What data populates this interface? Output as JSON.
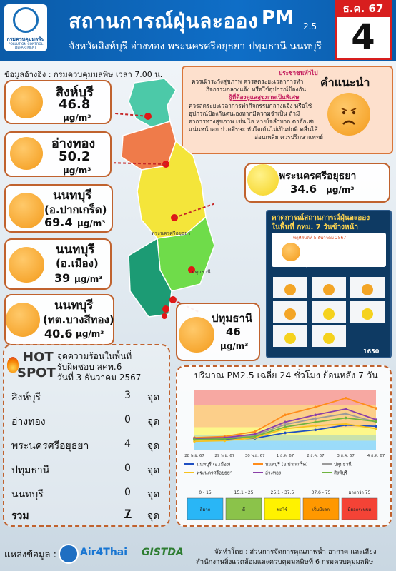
{
  "header": {
    "title": "สถานการณ์ฝุ่นละออง",
    "pm_main": "PM",
    "pm_sub": "2.5",
    "subtitle": "จังหวัดสิงห์บุรี อ่างทอง พระนครศรีอยุธยา ปทุมธานี นนทบุรี",
    "logo_text_th": "กรมควบคุมมลพิษ",
    "logo_text_en": "POLLUTION CONTROL DEPARTMENT",
    "date_month": "ธ.ค. 67",
    "date_day": "4"
  },
  "reference": "ข้อมูลอ้างอิง : กรมควบคุมมลพิษ เวลา 7.00 น.",
  "advice": {
    "title": "คำแนะนำ",
    "general_head": "ประชาชนทั่วไป",
    "general_text": [
      "ควรเฝ้าระวังสุขภาพ ควรลดระยะเวลาการทำ",
      "กิจกรรมกลางแจ้ง หรือใช้อุปกรณ์ป้องกัน"
    ],
    "risk_head": "ผู้ที่ต้องดูแลสุขภาพเป็นพิเศษ",
    "risk_text": [
      "ควรลดระยะเวลาการทำกิจกรรมกลางแจ้ง หรือใช้",
      "อุปกรณ์ป้องกันตนเองหากมีความจำเป็น ถ้ามี",
      "อาการทางสุขภาพ เช่น ไอ หายใจลำบาก ตาอักเสบ",
      "แน่นหน้าอก ปวดศีรษะ หัวใจเต้นไม่เป็นปกติ คลื่นไส้",
      "อ่อนเพลีย ควรปรึกษาแพทย์"
    ]
  },
  "provinces": [
    {
      "name": "สิงห์บุรี",
      "name2": "",
      "value": "46.8",
      "unit": "µg/m³"
    },
    {
      "name": "อ่างทอง",
      "name2": "",
      "value": "50.2",
      "unit": "µg/m³"
    },
    {
      "name": "นนทบุรี",
      "name2": "(อ.ปากเกร็ด)",
      "value": "69.4",
      "unit": "µg/m³"
    },
    {
      "name": "นนทบุรี",
      "name2": "(อ.เมือง)",
      "value": "39",
      "unit": "µg/m³"
    },
    {
      "name": "นนทบุรี",
      "name2": "(ทต.บางสีทอง)",
      "value": "40.6",
      "unit": "µg/m³"
    },
    {
      "name": "พระนครศรีอยุธยา",
      "name2": "",
      "value": "34.6",
      "unit": "µg/m³"
    },
    {
      "name": "ปทุมธานี",
      "name2": "",
      "value": "46",
      "unit": "µg/m³"
    }
  ],
  "map_labels": {
    "ayutthaya": "พระนครศรีอยุธยา",
    "pathum": "ปทุมธานี"
  },
  "forecast": {
    "title_1": "คาดการณ์สถานการณ์ฝุ่นละออง",
    "title_2": "ในพื้นที่ กทม. 7 วันข้างหน้า",
    "date_line": "พฤหัสบดีที่ 5 ธันวาคม 2567",
    "status": "เริ่มมีผลกระทบต่อสุขภาพ",
    "phone": "1650"
  },
  "hotspot": {
    "hot_word": "HOT",
    "spot_word": "SPOT",
    "head_1": "จุดความร้อนในพื้นที่",
    "head_2": "รับผิดชอบ สคพ.6",
    "head_3": "วันที่ 3 ธันวาคม 2567",
    "rows": [
      {
        "name": "สิงห์บุรี",
        "value": "3",
        "unit": "จุด"
      },
      {
        "name": "อ่างทอง",
        "value": "0",
        "unit": "จุด"
      },
      {
        "name": "พระนครศรีอยุธยา",
        "value": "4",
        "unit": "จุด"
      },
      {
        "name": "ปทุมธานี",
        "value": "0",
        "unit": "จุด"
      },
      {
        "name": "นนทบุรี",
        "value": "0",
        "unit": "จุด"
      }
    ],
    "total": {
      "name": "รวม",
      "value": "7",
      "unit": "จุด"
    }
  },
  "chart_title": "ปริมาณ PM2.5 เฉลี่ย 24 ชั่วโมง ย้อนหลัง 7 วัน",
  "chart_data": {
    "type": "line",
    "title": "ปริมาณ PM2.5 เฉลี่ย 24 ชั่วโมง ย้อนหลัง 7 วัน",
    "categories": [
      "28 พ.ย. 67",
      "29 พ.ย. 67",
      "30 พ.ย. 67",
      "1 ธ.ค. 67",
      "2 ธ.ค. 67",
      "3 ธ.ค. 67",
      "4 ธ.ค. 67"
    ],
    "ylim": [
      0,
      100
    ],
    "series": [
      {
        "name": "นนทบุรี (อ.เมือง)",
        "color": "#1f4fc2",
        "values": [
          18,
          17,
          19,
          28,
          33,
          41,
          39
        ]
      },
      {
        "name": "นนทบุรี (อ.ปากเกร็ด)",
        "color": "#ff8c1a",
        "values": [
          20,
          22,
          30,
          58,
          71,
          86,
          69
        ]
      },
      {
        "name": "ปทุมธานี",
        "color": "#9a9a9a",
        "values": [
          16,
          19,
          24,
          42,
          52,
          60,
          46
        ]
      },
      {
        "name": "พระนครศรีอยุธยา",
        "color": "#f7c21e",
        "values": [
          14,
          15,
          20,
          35,
          40,
          43,
          35
        ]
      },
      {
        "name": "อ่างทอง",
        "color": "#8a3fa8",
        "values": [
          19,
          20,
          26,
          46,
          58,
          68,
          50
        ]
      },
      {
        "name": "สิงห์บุรี",
        "color": "#6fb43f",
        "values": [
          17,
          18,
          22,
          38,
          46,
          53,
          47
        ]
      }
    ],
    "bands": [
      {
        "label": "0 - 15",
        "name": "ดีมาก",
        "color": "#29b6f6"
      },
      {
        "label": "15.1 - 25",
        "name": "ดี",
        "color": "#8bc34a"
      },
      {
        "label": "25.1 - 37.5",
        "name": "พอใช้",
        "color": "#fff200"
      },
      {
        "label": "37.6 - 75",
        "name": "เริ่มมีผลกระทบต่อสุขภาพ",
        "color": "#ff9800"
      },
      {
        "label": "มากกว่า 75",
        "name": "มีผลกระทบต่อสุขภาพ",
        "color": "#f44336"
      }
    ]
  },
  "footer": {
    "source_label": "แหล่งข้อมูล :",
    "brand_1": "Air4Thai",
    "brand_2": "GISTDA",
    "credit_1": "จัดทำโดย : ส่วนการจัดการคุณภาพน้ำ อากาศ และเสียง",
    "credit_2": "สำนักงานสิ่งแวดล้อมและควบคุมมลพิษที่ 6 กรมควบคุมมลพิษ"
  }
}
